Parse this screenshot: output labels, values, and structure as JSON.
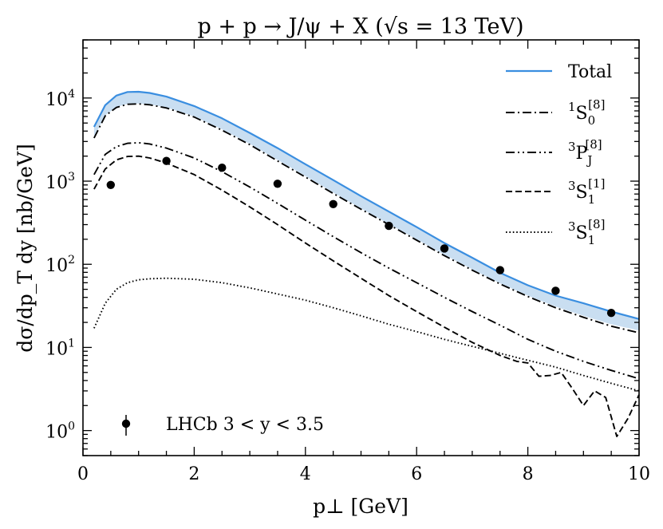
{
  "chart_data": {
    "type": "line",
    "title": "p + p → J/ψ + X  (√s = 13 TeV)",
    "xlabel": "p⊥ [GeV]",
    "ylabel": "dσ/dp_T dy [nb/GeV]",
    "xlim": [
      0,
      10
    ],
    "ylim": [
      0.5,
      50000
    ],
    "yscale": "log",
    "x_ticks": [
      "0",
      "2",
      "4",
      "6",
      "8",
      "10"
    ],
    "y_ticks": [
      {
        "base": "10",
        "exp": "0",
        "value": 1
      },
      {
        "base": "10",
        "exp": "1",
        "value": 10
      },
      {
        "base": "10",
        "exp": "2",
        "value": 100
      },
      {
        "base": "10",
        "exp": "3",
        "value": 1000
      },
      {
        "base": "10",
        "exp": "4",
        "value": 10000
      }
    ],
    "colors": {
      "total": "#3a8ee0",
      "band": "#c9def1",
      "black": "#000000"
    },
    "series": [
      {
        "name": "Total",
        "label": "Total",
        "style": "solid",
        "color": "#3a8ee0",
        "x": [
          0.2,
          0.4,
          0.6,
          0.8,
          1.0,
          1.2,
          1.5,
          2,
          2.5,
          3,
          3.5,
          4,
          4.5,
          5,
          5.5,
          6,
          6.5,
          7,
          7.5,
          8,
          8.5,
          9,
          9.5,
          10
        ],
        "y": [
          4500,
          8200,
          10700,
          11800,
          11900,
          11500,
          10400,
          8000,
          5700,
          3800,
          2500,
          1600,
          1030,
          660,
          430,
          280,
          180,
          120,
          79,
          56,
          42,
          34,
          27,
          22
        ]
      },
      {
        "name": "Total-lower",
        "label": "",
        "style": "none",
        "x": [
          0.2,
          0.4,
          0.6,
          0.8,
          1.0,
          1.2,
          1.5,
          2,
          2.5,
          3,
          3.5,
          4,
          4.5,
          5,
          5.5,
          6,
          6.5,
          7,
          7.5,
          8,
          8.5,
          9,
          9.5,
          10
        ],
        "y": [
          3400,
          6200,
          7800,
          8500,
          8600,
          8400,
          7700,
          6000,
          4200,
          2800,
          1800,
          1150,
          730,
          470,
          305,
          200,
          130,
          87,
          59,
          42,
          31,
          24,
          19,
          16
        ]
      },
      {
        "name": "1S0[8]",
        "label": "S",
        "pre": "1",
        "sub": "0",
        "sup": "[8]",
        "style": "dashdot",
        "color": "#000000",
        "x": [
          0.2,
          0.4,
          0.6,
          0.8,
          1.0,
          1.2,
          1.5,
          2,
          2.5,
          3,
          3.5,
          4,
          4.5,
          5,
          5.5,
          6,
          6.5,
          7,
          7.5,
          8,
          8.5,
          9,
          9.5,
          10
        ],
        "y": [
          3300,
          6100,
          7700,
          8400,
          8500,
          8300,
          7600,
          5900,
          4100,
          2750,
          1750,
          1120,
          710,
          460,
          300,
          195,
          127,
          85,
          58,
          41,
          30,
          23,
          18,
          15
        ]
      },
      {
        "name": "3PJ[8]",
        "label": "P",
        "pre": "3",
        "sub": "J",
        "sup": "[8]",
        "style": "dashdotdot",
        "color": "#000000",
        "x": [
          0.2,
          0.4,
          0.6,
          0.8,
          1.0,
          1.2,
          1.5,
          2,
          2.5,
          3,
          3.5,
          4,
          4.5,
          5,
          5.5,
          6,
          6.5,
          7,
          7.5,
          8,
          8.5,
          9,
          9.5,
          10
        ],
        "y": [
          1200,
          2100,
          2600,
          2850,
          2900,
          2800,
          2500,
          1900,
          1300,
          850,
          540,
          340,
          215,
          138,
          90,
          60,
          40,
          27,
          18.5,
          12.5,
          9,
          6.8,
          5.3,
          4.2
        ]
      },
      {
        "name": "3S1[1]",
        "label": "S",
        "pre": "3",
        "sub": "1",
        "sup": "[1]",
        "style": "dashed",
        "color": "#000000",
        "x": [
          0.2,
          0.4,
          0.6,
          0.8,
          1.0,
          1.2,
          1.5,
          2,
          2.5,
          3,
          3.5,
          4,
          4.5,
          5,
          5.5,
          6,
          6.5,
          7,
          7.5,
          7.8,
          8,
          8.2,
          8.4,
          8.6,
          8.8,
          9,
          9.2,
          9.4,
          9.6,
          9.8,
          10
        ],
        "y": [
          800,
          1400,
          1800,
          1980,
          2000,
          1900,
          1650,
          1200,
          780,
          490,
          300,
          180,
          110,
          68,
          42,
          27,
          17.5,
          11.5,
          8.0,
          6.8,
          6.5,
          4.5,
          4.6,
          5.0,
          3.2,
          2.0,
          3.0,
          2.5,
          0.85,
          1.4,
          2.7
        ]
      },
      {
        "name": "3S1[8]",
        "label": "S",
        "pre": "3",
        "sub": "1",
        "sup": "[8]",
        "style": "dotted",
        "color": "#000000",
        "x": [
          0.2,
          0.4,
          0.6,
          0.8,
          1.0,
          1.2,
          1.5,
          2,
          2.5,
          3,
          3.5,
          4,
          4.5,
          5,
          5.5,
          6,
          6.5,
          7,
          7.5,
          8,
          8.5,
          9,
          9.5,
          10
        ],
        "y": [
          17,
          34,
          50,
          60,
          65,
          67,
          68,
          66,
          60,
          52,
          44,
          37,
          30,
          24,
          19,
          15.5,
          12.5,
          10.3,
          8.5,
          7.0,
          5.8,
          4.6,
          3.7,
          3.0
        ]
      }
    ],
    "data_points": {
      "name": "LHCb",
      "label": "LHCb  3 < y < 3.5",
      "x": [
        0.5,
        1.5,
        2.5,
        3.5,
        4.5,
        5.5,
        6.5,
        7.5,
        8.5,
        9.5
      ],
      "y": [
        900,
        1750,
        1450,
        930,
        530,
        290,
        155,
        85,
        48,
        26
      ]
    },
    "legend_position": "top-right",
    "legend_data_position": "lower-left"
  }
}
